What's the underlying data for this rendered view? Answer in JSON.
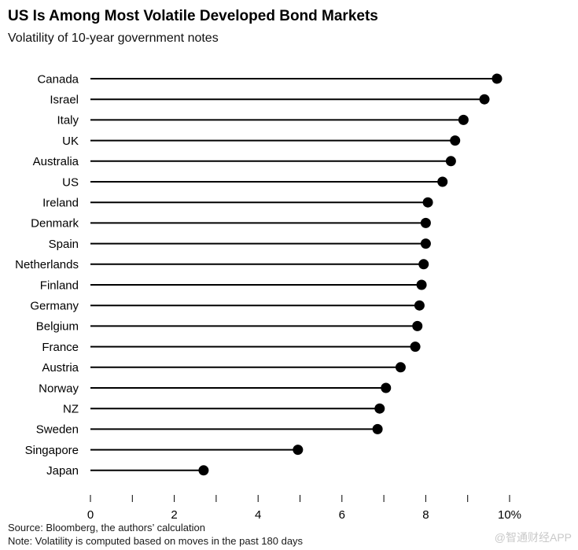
{
  "header": {
    "title": "US Is Among Most Volatile Developed Bond Markets",
    "subtitle": "Volatility of 10-year government notes"
  },
  "chart_data": {
    "type": "lollipop",
    "title": "US Is Among Most Volatile Developed Bond Markets",
    "subtitle": "Volatility of 10-year government notes",
    "categories": [
      "Canada",
      "Israel",
      "Italy",
      "UK",
      "Australia",
      "US",
      "Ireland",
      "Denmark",
      "Spain",
      "Netherlands",
      "Finland",
      "Germany",
      "Belgium",
      "France",
      "Austria",
      "Norway",
      "NZ",
      "Sweden",
      "Singapore",
      "Japan"
    ],
    "values": [
      9.7,
      9.4,
      8.9,
      8.7,
      8.6,
      8.4,
      8.05,
      8.0,
      8.0,
      7.95,
      7.9,
      7.85,
      7.8,
      7.75,
      7.4,
      7.05,
      6.9,
      6.85,
      4.95,
      2.7
    ],
    "xlabel": "",
    "ylabel": "",
    "xlim": [
      0,
      10
    ],
    "x_major_ticks": [
      0,
      2,
      4,
      6,
      8,
      10
    ],
    "x_tick_labels": [
      "0",
      "2",
      "4",
      "6",
      "8",
      "10%"
    ],
    "x_minor_ticks": [
      1,
      3,
      5,
      7,
      9
    ],
    "grid": false,
    "legend": "none",
    "marker": "filled-circle",
    "series_color": "#000000"
  },
  "footer": {
    "source": "Source: Bloomberg, the authors’ calculation",
    "note": "Note: Volatility is computed based on moves in the past 180 days",
    "watermark": "@智通财经APP"
  },
  "colors": {
    "accent": "#000000",
    "text": "#000000",
    "watermark": "#c9c9c9",
    "background": "#ffffff"
  }
}
